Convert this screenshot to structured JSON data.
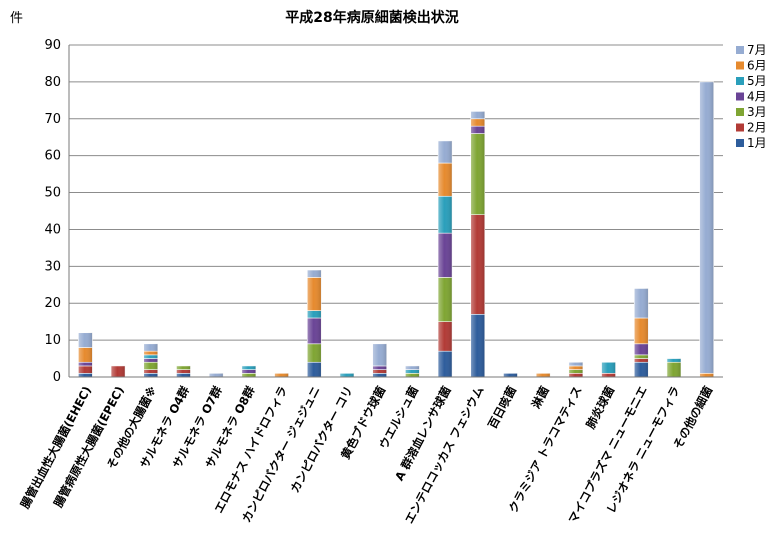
{
  "chart_data": {
    "type": "bar",
    "stacked": true,
    "title": "平成28年病原細菌検出状況",
    "unit_label": "件",
    "ylim": [
      0,
      90
    ],
    "yticks": [
      0,
      10,
      20,
      30,
      40,
      50,
      60,
      70,
      80,
      90
    ],
    "grid": true,
    "legend_position": "right",
    "categories": [
      "腸管出血性大腸菌(EHEC)",
      "腸管病原性大腸菌(EPEC)",
      "その他の大腸菌※",
      "サルモネラ O4群",
      "サルモネラ O7群",
      "サルモネラ O8群",
      "エロモナス ハイドロフィラ",
      "カンピロバクター ジェジュニ",
      "カンピロバクター コリ",
      "黄色ブドウ球菌",
      "ウエルシュ菌",
      "A 群溶血レンサ球菌",
      "エンテロコッカス フェシウム",
      "百日咳菌",
      "淋菌",
      "クラミジア トラコマティス",
      "肺炎球菌",
      "マイコプラズマ ニューモニエ",
      "レジオネラ ニューモフィラ",
      "その他の細菌"
    ],
    "series": [
      {
        "name": "1月",
        "color": "#2E5D9C",
        "values": [
          1,
          0,
          1,
          1,
          0,
          0,
          0,
          4,
          0,
          1,
          0,
          7,
          17,
          1,
          0,
          0,
          0,
          4,
          0,
          0
        ]
      },
      {
        "name": "2月",
        "color": "#B23B36",
        "values": [
          2,
          3,
          1,
          1,
          0,
          0,
          0,
          0,
          0,
          1,
          0,
          8,
          27,
          0,
          0,
          1,
          1,
          1,
          0,
          0
        ]
      },
      {
        "name": "3月",
        "color": "#7FA533",
        "values": [
          0,
          0,
          2,
          1,
          0,
          1,
          0,
          5,
          0,
          0,
          1,
          12,
          22,
          0,
          0,
          1,
          0,
          1,
          4,
          0
        ]
      },
      {
        "name": "4月",
        "color": "#6A4496",
        "values": [
          1,
          0,
          1,
          0,
          0,
          1,
          0,
          7,
          0,
          1,
          0,
          12,
          2,
          0,
          0,
          0,
          0,
          3,
          0,
          0
        ]
      },
      {
        "name": "5月",
        "color": "#2A9FBB",
        "values": [
          0,
          0,
          1,
          0,
          0,
          1,
          0,
          2,
          1,
          0,
          1,
          10,
          0,
          0,
          0,
          0,
          3,
          0,
          1,
          0
        ]
      },
      {
        "name": "6月",
        "color": "#E68A2E",
        "values": [
          4,
          0,
          1,
          0,
          0,
          0,
          1,
          9,
          0,
          0,
          0,
          9,
          2,
          0,
          1,
          1,
          0,
          7,
          0,
          1
        ]
      },
      {
        "name": "7月",
        "color": "#96ACD2",
        "values": [
          4,
          0,
          2,
          0,
          1,
          0,
          0,
          2,
          0,
          6,
          1,
          6,
          2,
          0,
          0,
          1,
          0,
          8,
          0,
          79
        ]
      }
    ]
  }
}
